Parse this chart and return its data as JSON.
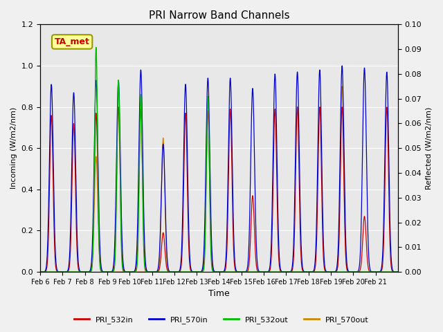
{
  "title": "PRI Narrow Band Channels",
  "xlabel": "Time",
  "ylabel_left": "Incoming (W/m2/nm)",
  "ylabel_right": "Reflected (W/m2/nm)",
  "ylim_left": [
    0,
    1.2
  ],
  "ylim_right": [
    0,
    0.1
  ],
  "background_color": "#f0f0f0",
  "plot_bg_color": "#e8e8e8",
  "annotation_text": "TA_met",
  "annotation_color": "#cc0000",
  "annotation_bg": "#ffff99",
  "annotation_border": "#999900",
  "legend_entries": [
    "PRI_532in",
    "PRI_570in",
    "PRI_532out",
    "PRI_570out"
  ],
  "legend_colors": [
    "#cc0000",
    "#0000cc",
    "#00bb00",
    "#cc8800"
  ],
  "x_tick_labels": [
    "Feb 6",
    "Feb 7",
    "Feb 8",
    "Feb 9",
    "Feb 10",
    "Feb 11",
    "Feb 12",
    "Feb 13",
    "Feb 14",
    "Feb 15",
    "Feb 16",
    "Feb 17",
    "Feb 18",
    "Feb 19",
    "Feb 20",
    "Feb 21"
  ],
  "num_days": 16,
  "day_peaks_532in": [
    0.76,
    0.72,
    0.77,
    0.8,
    0.79,
    0.19,
    0.77,
    0.78,
    0.79,
    0.37,
    0.79,
    0.8,
    0.8,
    0.8,
    0.27,
    0.8
  ],
  "day_peaks_570in": [
    0.91,
    0.87,
    0.93,
    0.93,
    0.98,
    0.62,
    0.91,
    0.94,
    0.94,
    0.89,
    0.96,
    0.97,
    0.98,
    1.0,
    0.99,
    0.97
  ],
  "day_peaks_532out": [
    0.0,
    0.0,
    1.09,
    0.93,
    0.86,
    0.0,
    0.0,
    0.85,
    0.0,
    0.0,
    0.0,
    0.0,
    0.0,
    0.0,
    0.0,
    0.0
  ],
  "day_peaks_570out": [
    0.005,
    0.005,
    0.56,
    0.005,
    0.005,
    0.65,
    0.005,
    0.85,
    0.005,
    0.005,
    0.005,
    0.005,
    0.005,
    0.9,
    0.005,
    0.005
  ],
  "yticks_left": [
    0.0,
    0.2,
    0.4,
    0.6,
    0.8,
    1.0,
    1.2
  ],
  "yticks_right": [
    0.0,
    0.01,
    0.02,
    0.03,
    0.04,
    0.05,
    0.06,
    0.07,
    0.08,
    0.09,
    0.1
  ]
}
